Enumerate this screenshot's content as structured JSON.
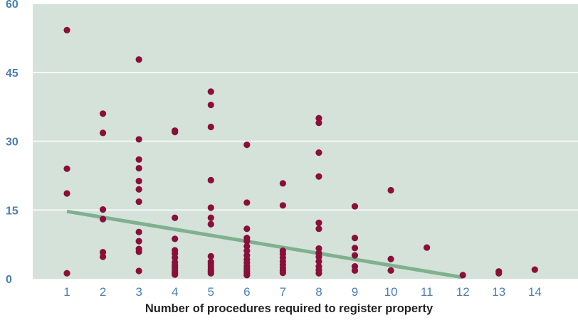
{
  "chart_data": {
    "type": "scatter",
    "title": "",
    "xlabel": "Number of procedures required to register property",
    "ylabel": "",
    "xlim": [
      0.05,
      15.2
    ],
    "ylim": [
      0,
      60
    ],
    "x_ticks": [
      1,
      2,
      3,
      4,
      5,
      6,
      7,
      8,
      9,
      10,
      11,
      12,
      13,
      14
    ],
    "y_ticks": [
      0,
      15,
      30,
      45,
      60
    ],
    "grid": "horizontal",
    "colors": {
      "plot_background": "#d4e2d9",
      "gridline": "#ffffff",
      "points": "#8a0f3a",
      "trend_line": "#7fb08f",
      "tick_labels": "#4a7fb3",
      "axis_label": "#222222"
    },
    "series": [
      {
        "type": "scatter",
        "points": [
          [
            1,
            54.2
          ],
          [
            1,
            24
          ],
          [
            1,
            18.6
          ],
          [
            1,
            1.2
          ],
          [
            2,
            36
          ],
          [
            2,
            31.8
          ],
          [
            2,
            15.1
          ],
          [
            2,
            13
          ],
          [
            2,
            5.8
          ],
          [
            2,
            4.8
          ],
          [
            3,
            47.8
          ],
          [
            3,
            30.4
          ],
          [
            3,
            26
          ],
          [
            3,
            24.1
          ],
          [
            3,
            21.3
          ],
          [
            3,
            19.5
          ],
          [
            3,
            16.8
          ],
          [
            3,
            10.2
          ],
          [
            3,
            8.2
          ],
          [
            3,
            6.5
          ],
          [
            3,
            5.9
          ],
          [
            3,
            1.7
          ],
          [
            4,
            32.3
          ],
          [
            4,
            32
          ],
          [
            4,
            13.3
          ],
          [
            4,
            8.7
          ],
          [
            4,
            6.2
          ],
          [
            4,
            5.5
          ],
          [
            4,
            4.6
          ],
          [
            4,
            3.6
          ],
          [
            4,
            2.9
          ],
          [
            4,
            2.4
          ],
          [
            4,
            1.8
          ],
          [
            4,
            1.3
          ],
          [
            4,
            0.9
          ],
          [
            5,
            40.8
          ],
          [
            5,
            37.9
          ],
          [
            5,
            33.1
          ],
          [
            5,
            21.5
          ],
          [
            5,
            15.5
          ],
          [
            5,
            13.3
          ],
          [
            5,
            11.9
          ],
          [
            5,
            4.9
          ],
          [
            5,
            3.7
          ],
          [
            5,
            3.2
          ],
          [
            5,
            2.6
          ],
          [
            5,
            2.1
          ],
          [
            5,
            1.6
          ],
          [
            5,
            1.2
          ],
          [
            6,
            29.2
          ],
          [
            6,
            16.6
          ],
          [
            6,
            10.9
          ],
          [
            6,
            8.9
          ],
          [
            6,
            8.2
          ],
          [
            6,
            7.1
          ],
          [
            6,
            6.1
          ],
          [
            6,
            5.1
          ],
          [
            6,
            4.2
          ],
          [
            6,
            3.5
          ],
          [
            6,
            2.8
          ],
          [
            6,
            2.2
          ],
          [
            6,
            1.7
          ],
          [
            6,
            1.2
          ],
          [
            6,
            0.8
          ],
          [
            7,
            20.8
          ],
          [
            7,
            16
          ],
          [
            7,
            6.1
          ],
          [
            7,
            5.4
          ],
          [
            7,
            4.6
          ],
          [
            7,
            3.8
          ],
          [
            7,
            3.1
          ],
          [
            7,
            2.4
          ],
          [
            7,
            1.8
          ],
          [
            7,
            1.3
          ],
          [
            8,
            35
          ],
          [
            8,
            34
          ],
          [
            8,
            27.5
          ],
          [
            8,
            22.3
          ],
          [
            8,
            12.2
          ],
          [
            8,
            10.9
          ],
          [
            8,
            6.6
          ],
          [
            8,
            5.6
          ],
          [
            8,
            4.8
          ],
          [
            8,
            3.8
          ],
          [
            8,
            2.7
          ],
          [
            8,
            1.9
          ],
          [
            8,
            1.2
          ],
          [
            9,
            15.8
          ],
          [
            9,
            8.9
          ],
          [
            9,
            6.7
          ],
          [
            9,
            5.1
          ],
          [
            9,
            2.7
          ],
          [
            9,
            1.8
          ],
          [
            10,
            19.3
          ],
          [
            10,
            4.3
          ],
          [
            10,
            1.8
          ],
          [
            11,
            6.8
          ],
          [
            12,
            0.8
          ],
          [
            13,
            1.6
          ],
          [
            13,
            1.2
          ],
          [
            14,
            2
          ]
        ]
      },
      {
        "type": "line",
        "points": [
          [
            1,
            14.7
          ],
          [
            12,
            0.3
          ]
        ]
      }
    ]
  }
}
